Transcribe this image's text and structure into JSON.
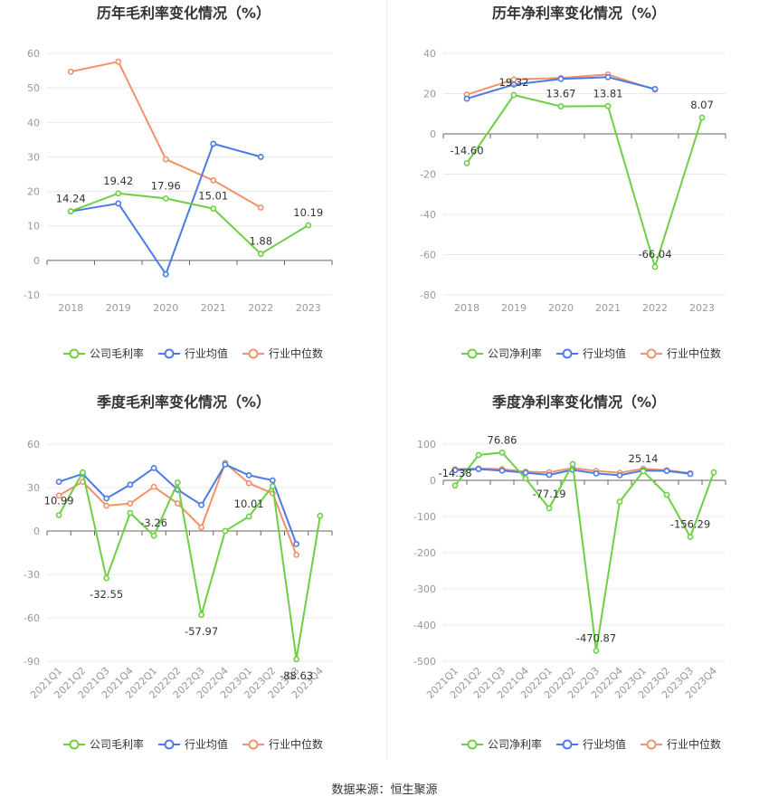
{
  "source_text": "数据来源：恒生聚源",
  "colors": {
    "company": "#6dd043",
    "industry_avg": "#4b7be5",
    "industry_median": "#f2916a",
    "grid": "#e8e8e8",
    "axis": "#666666"
  },
  "chart_data": [
    {
      "type": "line",
      "title": "历年毛利率变化情况（%）",
      "categories": [
        "2018",
        "2019",
        "2020",
        "2021",
        "2022",
        "2023"
      ],
      "ylim": [
        -10,
        60
      ],
      "yticks": [
        -10,
        0,
        10,
        20,
        30,
        40,
        50,
        60
      ],
      "grid": true,
      "legend_position": "bottom",
      "series": [
        {
          "name": "公司毛利率",
          "values": [
            14.24,
            19.42,
            17.96,
            15.01,
            1.88,
            10.19
          ]
        },
        {
          "name": "行业均值",
          "values": [
            14.2,
            16.5,
            -4.0,
            33.8,
            30.0,
            null
          ]
        },
        {
          "name": "行业中位数",
          "values": [
            54.7,
            57.6,
            29.3,
            23.2,
            15.3,
            null
          ]
        }
      ],
      "data_labels": [
        "14.24",
        "19.42",
        "17.96",
        "15.01",
        "1.88",
        "10.19"
      ]
    },
    {
      "type": "line",
      "title": "历年净利率变化情况（%）",
      "categories": [
        "2018",
        "2019",
        "2020",
        "2021",
        "2022",
        "2023"
      ],
      "ylim": [
        -80,
        40
      ],
      "yticks": [
        -80,
        -60,
        -40,
        -20,
        0,
        20,
        40
      ],
      "grid": true,
      "legend_position": "bottom",
      "series": [
        {
          "name": "公司净利率",
          "values": [
            -14.6,
            19.32,
            13.67,
            13.81,
            -66.04,
            8.07
          ]
        },
        {
          "name": "行业均值",
          "values": [
            17.5,
            24.5,
            27.3,
            28.2,
            22.3,
            null
          ]
        },
        {
          "name": "行业中位数",
          "values": [
            19.5,
            27.0,
            27.8,
            29.5,
            22.0,
            null
          ]
        }
      ],
      "data_labels": [
        "-14.60",
        "19.32",
        "13.67",
        "13.81",
        "-66.04",
        "8.07"
      ]
    },
    {
      "type": "line",
      "title": "季度毛利率变化情况（%）",
      "categories": [
        "2021Q1",
        "2021Q2",
        "2021Q3",
        "2021Q4",
        "2022Q1",
        "2022Q2",
        "2022Q3",
        "2022Q4",
        "2023Q1",
        "2023Q2",
        "2023Q3",
        "2023Q4"
      ],
      "ylim": [
        -90,
        60
      ],
      "yticks": [
        -90,
        -60,
        -30,
        0,
        30,
        60
      ],
      "grid": true,
      "legend_position": "bottom",
      "series": [
        {
          "name": "公司毛利率",
          "values": [
            10.99,
            40.5,
            -32.55,
            12.5,
            -3.26,
            33.5,
            -57.97,
            0,
            10.01,
            31.0,
            -88.63,
            10.5
          ]
        },
        {
          "name": "行业均值",
          "values": [
            34.0,
            39.5,
            22.5,
            32.0,
            43.5,
            28.5,
            18.0,
            46.0,
            38.5,
            35.0,
            -9.0,
            null
          ]
        },
        {
          "name": "行业中位数",
          "values": [
            24.5,
            34.0,
            17.5,
            19.0,
            30.5,
            19.0,
            2.5,
            47.0,
            33.0,
            26.0,
            -16.5,
            null
          ]
        }
      ],
      "data_labels": [
        "10.99",
        "",
        "-32.55",
        "",
        "-3.26",
        "",
        "-57.97",
        "",
        "10.01",
        "",
        "-88.63",
        ""
      ]
    },
    {
      "type": "line",
      "title": "季度净利率变化情况（%）",
      "categories": [
        "2021Q1",
        "2021Q2",
        "2021Q3",
        "2021Q4",
        "2022Q1",
        "2022Q2",
        "2022Q3",
        "2022Q4",
        "2023Q1",
        "2023Q2",
        "2023Q3",
        "2023Q4"
      ],
      "ylim": [
        -500,
        100
      ],
      "yticks": [
        -500,
        -400,
        -300,
        -200,
        -100,
        0,
        100
      ],
      "grid": true,
      "legend_position": "bottom",
      "series": [
        {
          "name": "公司净利率",
          "values": [
            -14.38,
            70.0,
            76.86,
            5.0,
            -77.19,
            45.0,
            -470.87,
            -59.0,
            25.14,
            -40.0,
            -156.29,
            22.0
          ]
        },
        {
          "name": "行业均值",
          "values": [
            28.0,
            31.0,
            27.0,
            21.0,
            15.0,
            29.0,
            19.0,
            14.0,
            27.0,
            26.0,
            18.0,
            null
          ]
        },
        {
          "name": "行业中位数",
          "values": [
            31.0,
            33.0,
            31.0,
            24.0,
            22.0,
            34.0,
            26.0,
            21.0,
            32.0,
            28.0,
            20.0,
            null
          ]
        }
      ],
      "data_labels": [
        "-14.38",
        "",
        "76.86",
        "",
        "-77.19",
        "",
        "-470.87",
        "",
        "25.14",
        "",
        "-156.29",
        ""
      ]
    }
  ]
}
